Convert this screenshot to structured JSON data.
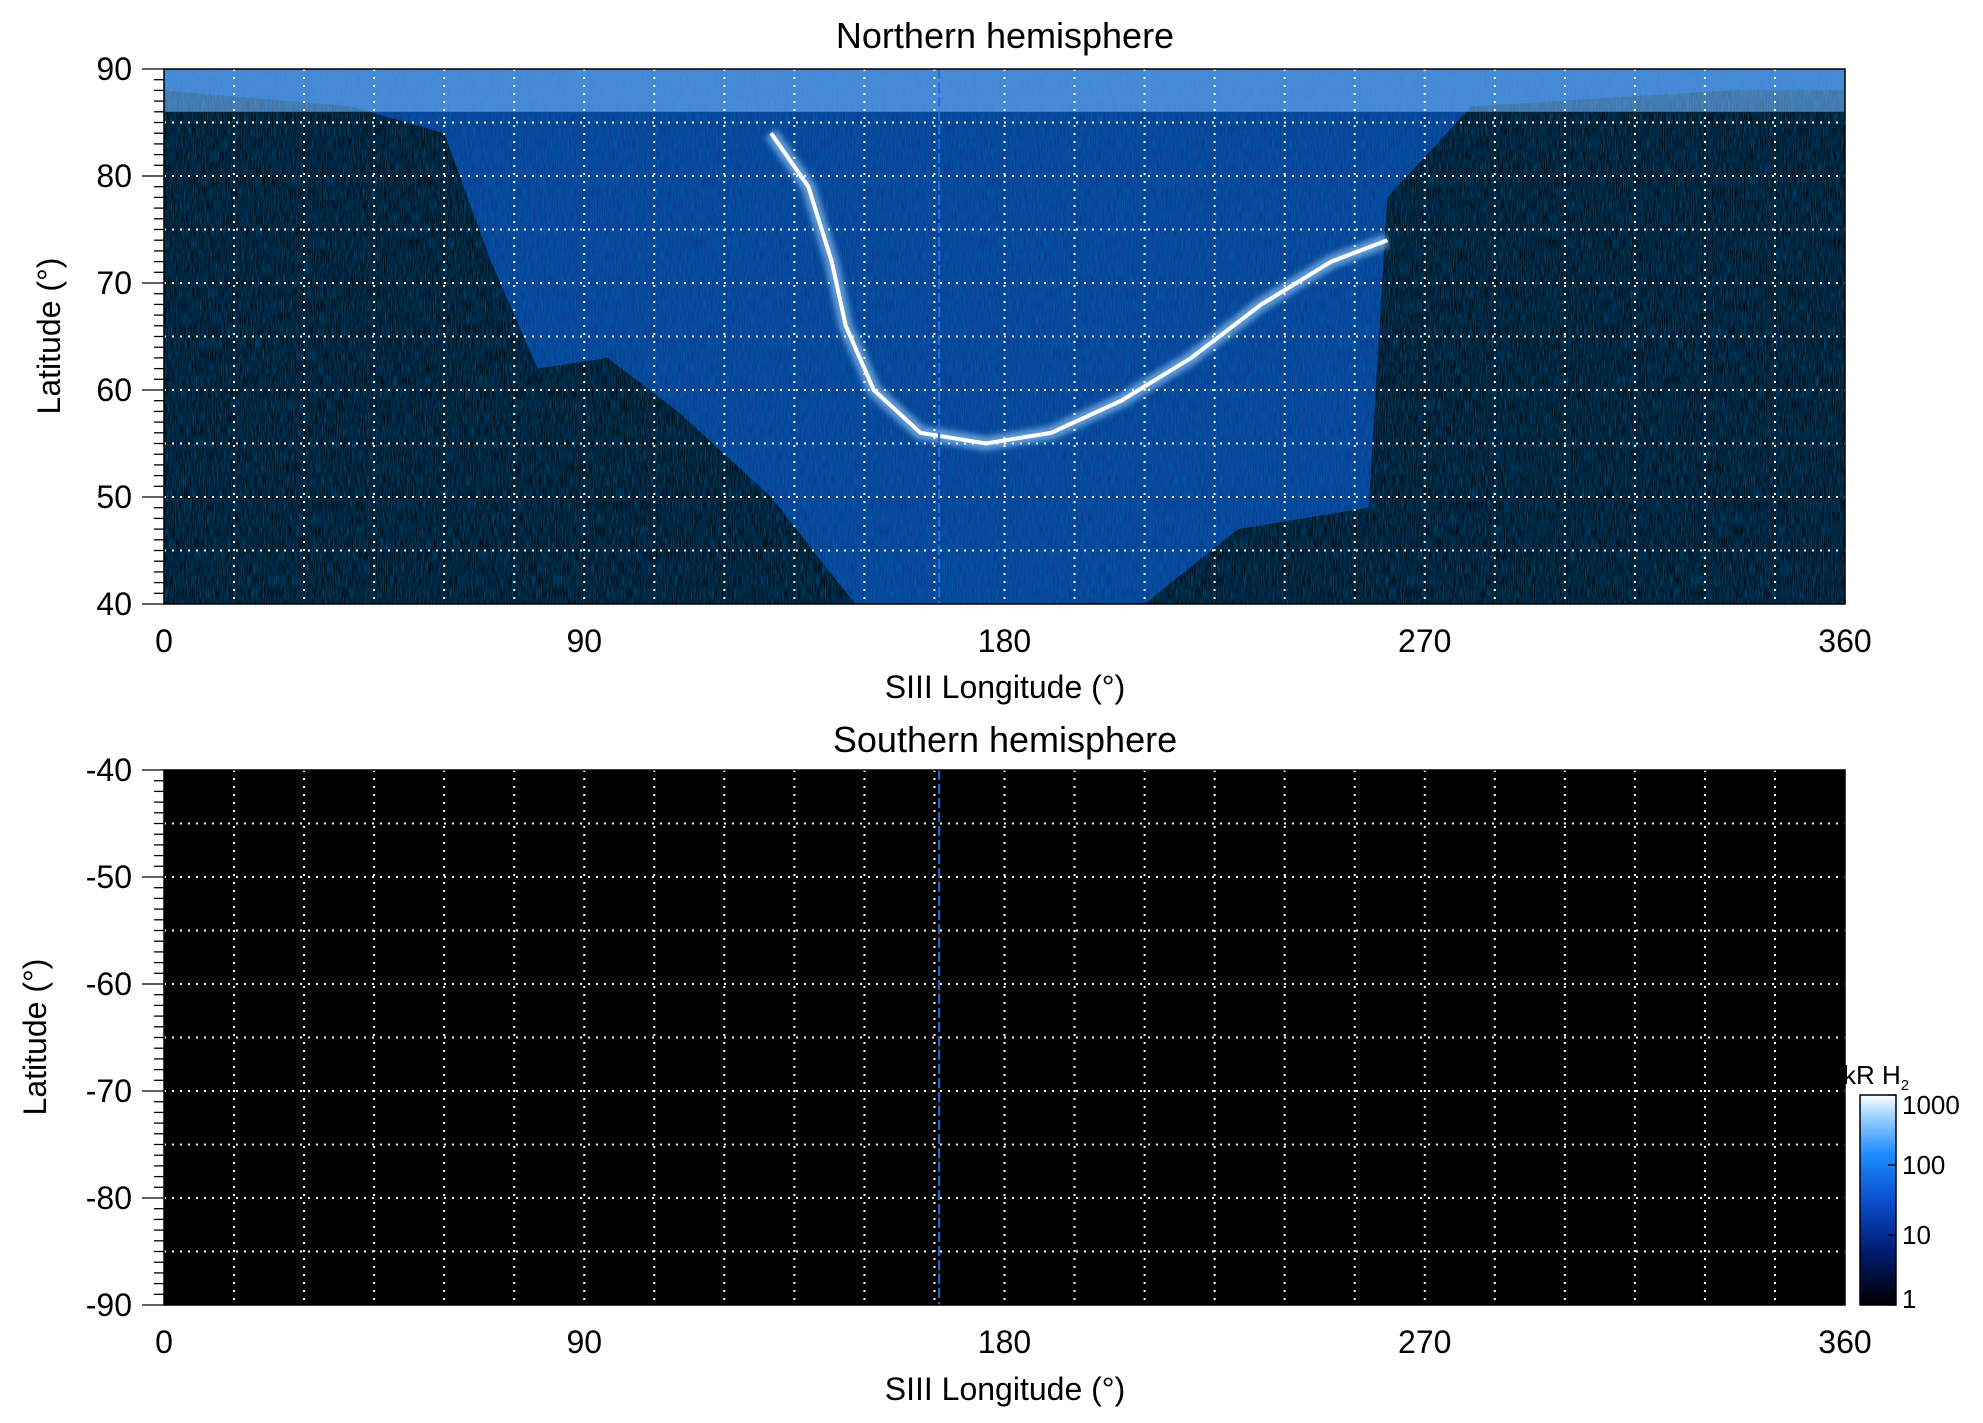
{
  "chart_data": [
    {
      "type": "heatmap",
      "title": "Northern hemisphere",
      "xlabel": "SIII Longitude (°)",
      "ylabel": "Latitude (°)",
      "xlim": [
        0,
        360
      ],
      "ylim": [
        40,
        90
      ],
      "xticks": [
        "0",
        "90",
        "180",
        "270",
        "360"
      ],
      "yticks": [
        "90",
        "80",
        "70",
        "60",
        "50",
        "40"
      ],
      "grid": true,
      "grid_style": "dotted white",
      "background": "#000000",
      "main_oval": {
        "description_points": [
          {
            "lon": 130,
            "lat": 84
          },
          {
            "lon": 138,
            "lat": 79
          },
          {
            "lon": 143,
            "lat": 72
          },
          {
            "lon": 146,
            "lat": 66
          },
          {
            "lon": 152,
            "lat": 60
          },
          {
            "lon": 162,
            "lat": 56
          },
          {
            "lon": 176,
            "lat": 55
          },
          {
            "lon": 190,
            "lat": 56
          },
          {
            "lon": 205,
            "lat": 59
          },
          {
            "lon": 220,
            "lat": 63
          },
          {
            "lon": 235,
            "lat": 68
          },
          {
            "lon": 250,
            "lat": 72
          },
          {
            "lon": 262,
            "lat": 74
          }
        ]
      },
      "emission_extent": [
        {
          "lon": 0,
          "lat_min": 88
        },
        {
          "lon": 40,
          "lat_min": 86.5
        },
        {
          "lon": 60,
          "lat_min": 84
        },
        {
          "lon": 70,
          "lat_min": 72
        },
        {
          "lon": 80,
          "lat_min": 62
        },
        {
          "lon": 95,
          "lat_min": 63
        },
        {
          "lon": 110,
          "lat_min": 58
        },
        {
          "lon": 130,
          "lat_min": 50
        },
        {
          "lon": 148,
          "lat_min": 40
        },
        {
          "lon": 210,
          "lat_min": 40
        },
        {
          "lon": 230,
          "lat_min": 47
        },
        {
          "lon": 258,
          "lat_min": 49
        },
        {
          "lon": 262,
          "lat_min": 78
        },
        {
          "lon": 280,
          "lat_min": 86.5
        },
        {
          "lon": 335,
          "lat_min": 88
        },
        {
          "lon": 360,
          "lat_min": 88
        }
      ],
      "marker_longitude": 166
    },
    {
      "type": "heatmap",
      "title": "Southern hemisphere",
      "xlabel": "SIII Longitude (°)",
      "ylabel": "Latitude (°)",
      "xlim": [
        0,
        360
      ],
      "ylim": [
        -90,
        -40
      ],
      "xticks": [
        "0",
        "90",
        "180",
        "270",
        "360"
      ],
      "yticks": [
        "-40",
        "-50",
        "-60",
        "-70",
        "-80",
        "-90"
      ],
      "grid": true,
      "grid_style": "dotted white",
      "background": "#000000",
      "marker_longitude": 166
    }
  ],
  "colorbar": {
    "label_main": "kR H",
    "label_sub": "2",
    "scale": "log",
    "range": [
      1,
      1000
    ],
    "ticks": [
      "1000",
      "100",
      "10",
      "1"
    ],
    "colors": [
      "#000000",
      "#001a6e",
      "#0b4fd0",
      "#1e8cff",
      "#9fd2ff",
      "#ffffff"
    ]
  }
}
